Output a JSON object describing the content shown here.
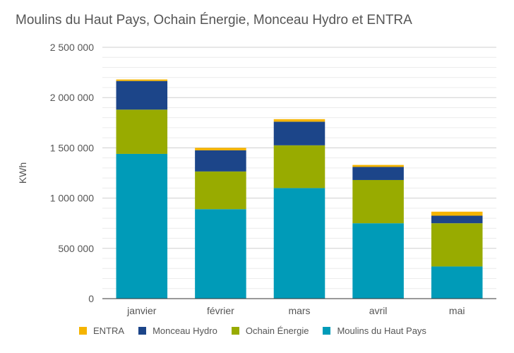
{
  "chart_data": {
    "type": "bar",
    "stacked": true,
    "title": "Moulins du Haut Pays, Ochain Énergie, Monceau Hydro et ENTRA",
    "xlabel": "",
    "ylabel": "KWh",
    "ylim": [
      0,
      2500000
    ],
    "yticks": [
      0,
      500000,
      1000000,
      1500000,
      2000000,
      2500000
    ],
    "ytick_labels": [
      "0",
      "500 000",
      "1 000 000",
      "1 500 000",
      "2 000 000",
      "2 500 000"
    ],
    "grid": true,
    "legend_position": "bottom",
    "categories": [
      "janvier",
      "février",
      "mars",
      "avril",
      "mai"
    ],
    "series": [
      {
        "name": "Moulins du Haut Pays",
        "color": "#009bb8",
        "values": [
          1440000,
          890000,
          1100000,
          750000,
          320000
        ]
      },
      {
        "name": "Ochain Énergie",
        "color": "#98ab00",
        "values": [
          440000,
          375000,
          425000,
          430000,
          430000
        ]
      },
      {
        "name": "Monceau Hydro",
        "color": "#1c4589",
        "values": [
          285000,
          210000,
          235000,
          130000,
          75000
        ]
      },
      {
        "name": "ENTRA",
        "color": "#f5b400",
        "values": [
          15000,
          25000,
          25000,
          20000,
          40000
        ]
      }
    ],
    "legend_order": [
      "ENTRA",
      "Monceau Hydro",
      "Ochain Énergie",
      "Moulins du Haut Pays"
    ]
  }
}
